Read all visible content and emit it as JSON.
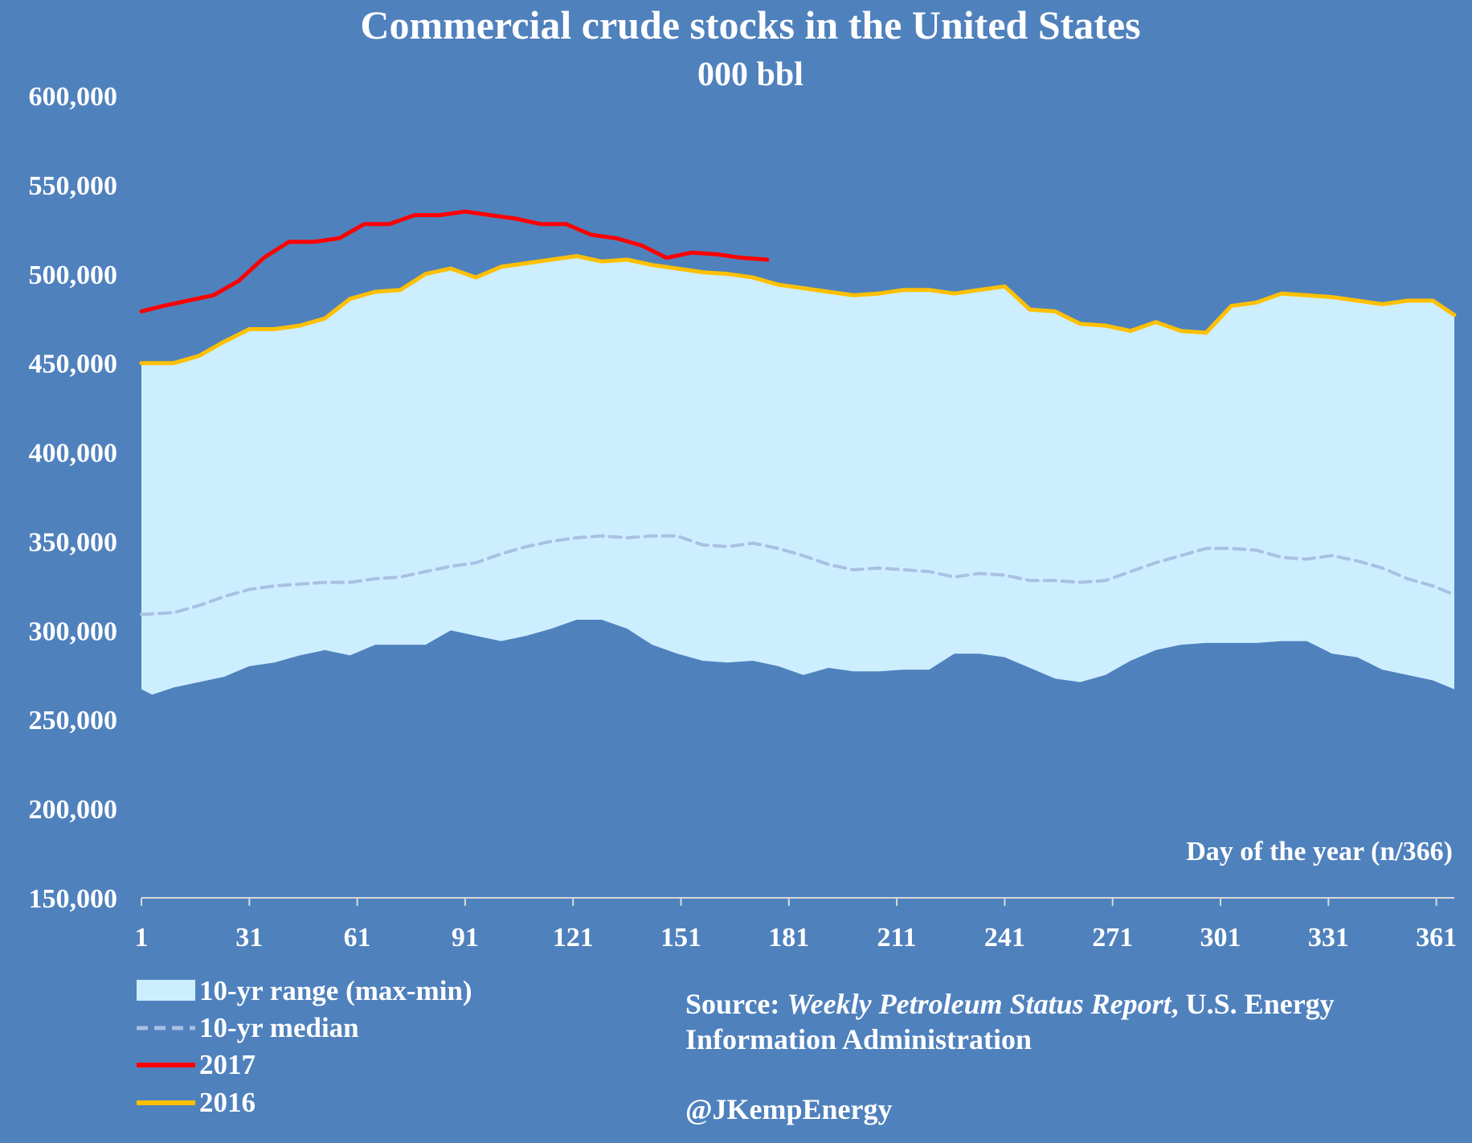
{
  "chart_data": {
    "type": "area",
    "title": "Commercial crude stocks in the United States",
    "subtitle": "000 bbl",
    "xlabel": "Day of the year (n/366)",
    "ylabel": "",
    "xlim": [
      1,
      366
    ],
    "ylim": [
      150000,
      600000
    ],
    "x_ticks": [
      1,
      31,
      61,
      91,
      121,
      151,
      181,
      211,
      241,
      271,
      301,
      331,
      361
    ],
    "x_tick_labels": [
      "1",
      "31",
      "61",
      "91",
      "121",
      "151",
      "181",
      "211",
      "241",
      "271",
      "301",
      "331",
      "361"
    ],
    "y_ticks": [
      150000,
      200000,
      250000,
      300000,
      350000,
      400000,
      450000,
      500000,
      550000,
      600000
    ],
    "y_tick_labels": [
      "150,000",
      "200,000",
      "250,000",
      "300,000",
      "350,000",
      "400,000",
      "450,000",
      "500,000",
      "550,000",
      "600,000"
    ],
    "grid": false,
    "legend_position": "bottom-left",
    "colors": {
      "background": "#4f81bd",
      "range_fill": "#cdeeff",
      "median": "#a9c0e3",
      "y2017": "#ff0000",
      "y2016": "#ffc000",
      "text": "#ffffff"
    },
    "series": [
      {
        "name": "10-yr range (max-min)",
        "kind": "band",
        "x": [
          1,
          4,
          10,
          17,
          24,
          31,
          38,
          45,
          52,
          59,
          66,
          73,
          80,
          87,
          94,
          101,
          108,
          115,
          122,
          129,
          136,
          143,
          150,
          157,
          164,
          171,
          178,
          185,
          192,
          199,
          206,
          213,
          220,
          227,
          234,
          241,
          248,
          255,
          262,
          269,
          276,
          283,
          290,
          297,
          304,
          311,
          318,
          325,
          332,
          339,
          346,
          353,
          360,
          366
        ],
        "upper": [
          450000,
          450000,
          450000,
          454000,
          462000,
          469000,
          469000,
          471000,
          475000,
          486000,
          490000,
          491000,
          500000,
          503000,
          498000,
          504000,
          506000,
          508000,
          510000,
          507000,
          508000,
          505000,
          503000,
          501000,
          500000,
          498000,
          494000,
          492000,
          490000,
          488000,
          489000,
          491000,
          491000,
          489000,
          491000,
          493000,
          480000,
          479000,
          472000,
          471000,
          468000,
          473000,
          468000,
          467000,
          482000,
          484000,
          489000,
          488000,
          487000,
          485000,
          483000,
          485000,
          485000,
          477000
        ],
        "lower": [
          267000,
          264000,
          268000,
          271000,
          274000,
          280000,
          282000,
          286000,
          289000,
          286000,
          292000,
          292000,
          292000,
          300000,
          297000,
          294000,
          297000,
          301000,
          306000,
          306000,
          301000,
          292000,
          287000,
          283000,
          282000,
          283000,
          280000,
          275000,
          279000,
          277000,
          277000,
          278000,
          278000,
          287000,
          287000,
          285000,
          279000,
          273000,
          271000,
          275000,
          283000,
          289000,
          292000,
          293000,
          293000,
          293000,
          294000,
          294000,
          287000,
          285000,
          278000,
          275000,
          272000,
          267000
        ]
      },
      {
        "name": "10-yr median",
        "kind": "line",
        "x": [
          1,
          10,
          17,
          24,
          31,
          38,
          45,
          52,
          59,
          66,
          73,
          80,
          87,
          94,
          101,
          108,
          115,
          122,
          129,
          136,
          143,
          150,
          157,
          164,
          171,
          178,
          185,
          192,
          199,
          206,
          213,
          220,
          227,
          234,
          241,
          248,
          255,
          262,
          269,
          276,
          283,
          290,
          297,
          304,
          311,
          318,
          325,
          332,
          339,
          346,
          353,
          360,
          366
        ],
        "values": [
          309000,
          310000,
          314000,
          319000,
          323000,
          325000,
          326000,
          327000,
          327000,
          329000,
          330000,
          333000,
          336000,
          338000,
          343000,
          347000,
          350000,
          352000,
          353000,
          352000,
          353000,
          353000,
          348000,
          347000,
          349000,
          346000,
          342000,
          337000,
          334000,
          335000,
          334000,
          333000,
          330000,
          332000,
          331000,
          328000,
          328000,
          327000,
          328000,
          333000,
          338000,
          342000,
          346000,
          346000,
          345000,
          341000,
          340000,
          342000,
          339000,
          335000,
          329000,
          325000,
          320000
        ]
      },
      {
        "name": "2017",
        "kind": "line",
        "x": [
          1,
          7,
          14,
          21,
          28,
          35,
          42,
          49,
          56,
          63,
          70,
          77,
          84,
          91,
          98,
          105,
          112,
          119,
          126,
          133,
          140,
          147,
          154,
          161,
          168,
          175
        ],
        "values": [
          479000,
          482000,
          485000,
          488000,
          496000,
          509000,
          518000,
          518000,
          520000,
          528000,
          528000,
          533000,
          533000,
          535000,
          533000,
          531000,
          528000,
          528000,
          522000,
          520000,
          516000,
          509000,
          512000,
          511000,
          509000,
          508000
        ]
      },
      {
        "name": "2016",
        "kind": "line",
        "x": [
          1,
          4,
          10,
          17,
          24,
          31,
          38,
          45,
          52,
          59,
          66,
          73,
          80,
          87,
          94,
          101,
          108,
          115,
          122,
          129,
          136,
          143,
          150,
          157,
          164,
          171,
          178,
          185,
          192,
          199,
          206,
          213,
          220,
          227,
          234,
          241,
          248,
          255,
          262,
          269,
          276,
          283,
          290,
          297,
          304,
          311,
          318,
          325,
          332,
          339,
          346,
          353,
          360,
          366
        ],
        "values": [
          450000,
          450000,
          450000,
          454000,
          462000,
          469000,
          469000,
          471000,
          475000,
          486000,
          490000,
          491000,
          500000,
          503000,
          498000,
          504000,
          506000,
          508000,
          510000,
          507000,
          508000,
          505000,
          503000,
          501000,
          500000,
          498000,
          494000,
          492000,
          490000,
          488000,
          489000,
          491000,
          491000,
          489000,
          491000,
          493000,
          480000,
          479000,
          472000,
          471000,
          468000,
          473000,
          468000,
          467000,
          482000,
          484000,
          489000,
          488000,
          487000,
          485000,
          483000,
          485000,
          485000,
          477000
        ]
      }
    ],
    "legend": [
      "10-yr range (max-min)",
      "10-yr median",
      "2017",
      "2016"
    ]
  },
  "source": {
    "prefix": "Source: ",
    "publication": "Weekly Petroleum Status Report",
    "suffix_line1": ", U.S. Energy",
    "line2": "Information Administration",
    "handle": "@JKempEnergy"
  }
}
